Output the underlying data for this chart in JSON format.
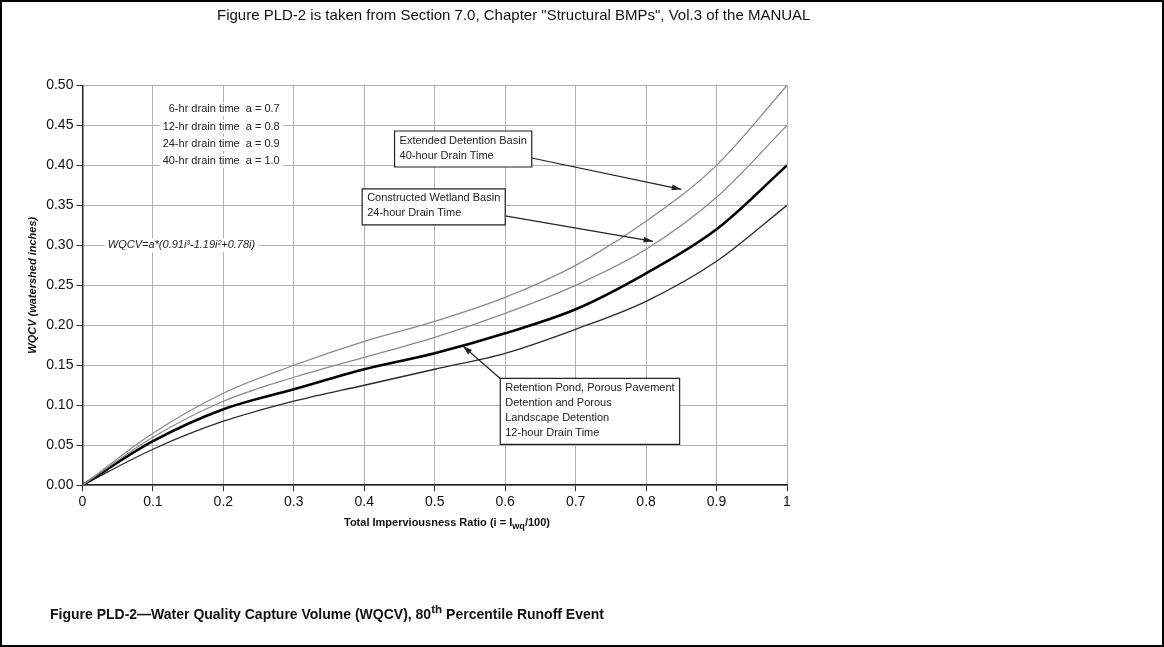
{
  "chart_data": {
    "type": "line",
    "title": "Figure PLD-2—Water Quality Capture Volume (WQCV), 80$^{th}$ Percentile Runoff Event",
    "subtitle": "Figure PLD-2 is taken from Section 7.0, Chapter \"Structural BMPs\", Vol.3 of the MANUAL",
    "xlabel": "Total Imperviousness Ratio (i = I$_{wq}$/100)",
    "ylabel": "WQCV (watershed inches)",
    "x": [
      0,
      0.1,
      0.2,
      0.3,
      0.4,
      0.5,
      0.6,
      0.7,
      0.8,
      0.9,
      1
    ],
    "series": [
      {
        "color": "#8a8a8a",
        "values": [
          0,
          0.065,
          0.115,
          0.15,
          0.18,
          0.205,
          0.235,
          0.275,
          0.33,
          0.4,
          0.5
        ]
      },
      {
        "color": "#8a8a8a",
        "values": [
          0,
          0.06,
          0.105,
          0.135,
          0.16,
          0.185,
          0.215,
          0.25,
          0.295,
          0.36,
          0.45
        ]
      },
      {
        "color": "#000000",
        "values": [
          0,
          0.055,
          0.095,
          0.12,
          0.145,
          0.165,
          0.19,
          0.22,
          0.265,
          0.32,
          0.4
        ]
      },
      {
        "color": "#2a2a2a",
        "values": [
          0,
          0.045,
          0.08,
          0.105,
          0.125,
          0.145,
          0.165,
          0.195,
          0.23,
          0.28,
          0.35
        ]
      }
    ],
    "xlim": [
      0,
      1
    ],
    "xticks": [
      0,
      0.1,
      0.2,
      0.3,
      0.4,
      0.5,
      0.6,
      0.7,
      0.8,
      0.9,
      1
    ],
    "ylim": [
      0,
      0.5
    ],
    "yticks": [
      {
        "value": 0,
        "label": "0.00"
      },
      {
        "value": 0.05,
        "label": "0.05"
      },
      {
        "value": 0.1,
        "label": "0.10"
      },
      {
        "value": 0.15,
        "label": "0.15"
      },
      {
        "value": 0.2,
        "label": "0.20"
      },
      {
        "value": 0.25,
        "label": "0.25"
      },
      {
        "value": 0.3,
        "label": "0.30"
      },
      {
        "value": 0.35,
        "label": "0.35"
      },
      {
        "value": 0.4,
        "label": "0.40"
      },
      {
        "value": 0.45,
        "label": "0.45"
      },
      {
        "value": 0.5,
        "label": "0.50"
      }
    ],
    "annotations": [
      "6-hr drain time  a = 0.7",
      "12-hr drain time  a = 0.8",
      "24-hr drain time  a = 0.9",
      "40-hr drain time  a = 1.0",
      "WQCV=a*(0.91i³-1.19i²+0.78i)",
      {
        "text": "Extended Detention Basin\n40-hour Drain Time",
        "x": 0.85,
        "y": 0.37
      },
      {
        "text": "Constructed Wetland Basin\n24-hour Drain Time",
        "x": 0.81,
        "y": 0.305
      },
      {
        "text": "Retention Pond, Porous Pavement\nDetention and Porous\nLandscape Detention\n12-hour Drain Time",
        "x": 0.54,
        "y": 0.174
      }
    ],
    "grid": true,
    "legend": false,
    "marker": "none",
    "line_style": "solid"
  }
}
